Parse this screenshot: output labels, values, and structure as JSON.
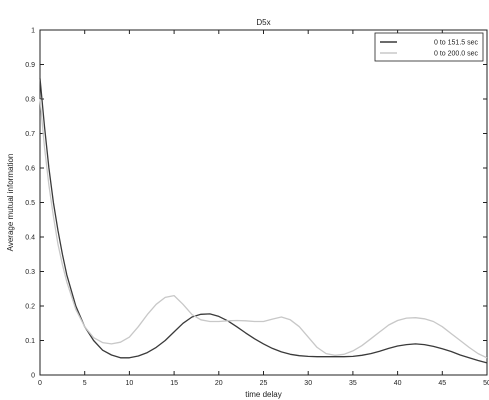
{
  "chart_data": {
    "type": "line",
    "title": "D5x",
    "xlabel": "time delay",
    "ylabel": "Average mutual information",
    "xlim": [
      0,
      50
    ],
    "ylim": [
      0,
      1
    ],
    "xticks": [
      "0",
      "5",
      "10",
      "15",
      "20",
      "25",
      "30",
      "35",
      "40",
      "45",
      "50"
    ],
    "yticks": [
      "0",
      "0.1",
      "0.2",
      "0.3",
      "0.4",
      "0.5",
      "0.6",
      "0.7",
      "0.8",
      "0.9",
      "1"
    ],
    "grid": false,
    "legend_position": "top-right",
    "series": [
      {
        "name": "0 to 151.5 sec",
        "color": "#3a3a3a",
        "x": [
          0,
          0.5,
          1,
          1.5,
          2,
          2.5,
          3,
          4,
          5,
          6,
          7,
          8,
          9,
          10,
          11,
          12,
          13,
          14,
          15,
          16,
          17,
          18,
          19,
          20,
          21,
          22,
          23,
          24,
          25,
          26,
          27,
          28,
          29,
          30,
          31,
          32,
          33,
          34,
          35,
          36,
          37,
          38,
          39,
          40,
          41,
          42,
          43,
          44,
          45,
          46,
          47,
          48,
          49,
          50
        ],
        "y": [
          0.86,
          0.72,
          0.6,
          0.5,
          0.42,
          0.35,
          0.29,
          0.2,
          0.14,
          0.1,
          0.072,
          0.058,
          0.05,
          0.05,
          0.055,
          0.065,
          0.08,
          0.1,
          0.125,
          0.15,
          0.168,
          0.176,
          0.177,
          0.17,
          0.157,
          0.14,
          0.122,
          0.105,
          0.09,
          0.077,
          0.067,
          0.06,
          0.056,
          0.054,
          0.053,
          0.053,
          0.053,
          0.053,
          0.054,
          0.057,
          0.062,
          0.069,
          0.077,
          0.084,
          0.088,
          0.09,
          0.088,
          0.083,
          0.076,
          0.068,
          0.058,
          0.05,
          0.042,
          0.035
        ]
      },
      {
        "name": "0 to 200.0 sec",
        "color": "#c8c8c8",
        "x": [
          0,
          0.5,
          1,
          1.5,
          2,
          2.5,
          3,
          4,
          5,
          6,
          7,
          8,
          9,
          10,
          11,
          12,
          13,
          14,
          15,
          16,
          17,
          18,
          19,
          20,
          21,
          22,
          23,
          24,
          25,
          26,
          27,
          28,
          29,
          30,
          31,
          32,
          33,
          34,
          35,
          36,
          37,
          38,
          39,
          40,
          41,
          42,
          43,
          44,
          45,
          46,
          47,
          48,
          49,
          50
        ],
        "y": [
          0.8,
          0.66,
          0.55,
          0.46,
          0.38,
          0.32,
          0.27,
          0.19,
          0.14,
          0.108,
          0.094,
          0.09,
          0.095,
          0.11,
          0.14,
          0.175,
          0.205,
          0.225,
          0.23,
          0.205,
          0.175,
          0.16,
          0.155,
          0.155,
          0.157,
          0.158,
          0.157,
          0.155,
          0.155,
          0.162,
          0.168,
          0.16,
          0.14,
          0.11,
          0.08,
          0.062,
          0.057,
          0.06,
          0.07,
          0.085,
          0.105,
          0.125,
          0.145,
          0.158,
          0.165,
          0.166,
          0.163,
          0.155,
          0.14,
          0.12,
          0.1,
          0.08,
          0.062,
          0.05
        ]
      }
    ]
  }
}
